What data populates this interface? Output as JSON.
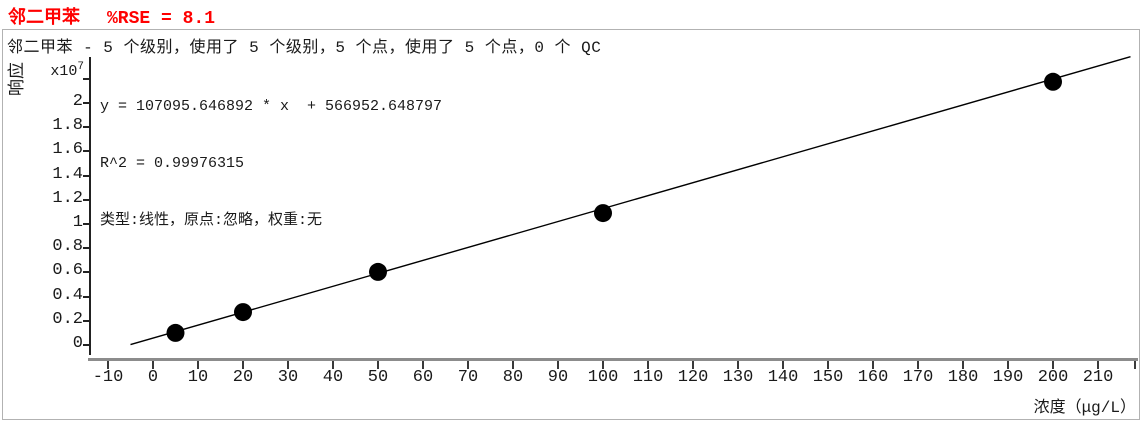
{
  "title": {
    "compound": "邻二甲苯",
    "rse": "%RSE = 8.1"
  },
  "plot": {
    "header": "邻二甲苯 - 5 个级别，使用了 5 个级别，5 个点，使用了 5 个点，0 个 QC",
    "equation_line": "y = 107095.646892 * x  + 566952.648797",
    "r2_line": "R^2 = 0.99976315",
    "model_line": "类型:线性，原点:忽略，权重:无",
    "y_axis_label": "响应",
    "y_scale_base": "x10",
    "y_scale_exp": "7",
    "x_axis_label": "浓度（μg/L）"
  },
  "chart_data": {
    "type": "scatter",
    "title": "邻二甲苯 %RSE = 8.1",
    "xlabel": "浓度（μg/L）",
    "ylabel": "响应 x10^7",
    "x": [
      5,
      20,
      50,
      100,
      200
    ],
    "y": [
      1000000,
      2720000,
      6040000,
      10900000,
      21750000
    ],
    "fit": {
      "kind": "线性",
      "origin_policy": "忽略",
      "weighting": "无",
      "slope": 107095.646892,
      "intercept": 566952.648797,
      "r_squared": 0.99976315,
      "rse_percent": 8.1,
      "levels": 5,
      "levels_used": 5,
      "points": 5,
      "points_used": 5,
      "qc_count": 0
    },
    "xticks": [
      -10,
      0,
      10,
      20,
      30,
      40,
      50,
      60,
      70,
      80,
      90,
      100,
      110,
      120,
      130,
      140,
      150,
      160,
      170,
      180,
      190,
      200,
      210
    ],
    "ytick_labels": [
      "0",
      "0.2",
      "0.4",
      "0.6",
      "0.8",
      "1",
      "1.2",
      "1.4",
      "1.6",
      "1.8",
      "2"
    ],
    "ytick_scale": 10000000,
    "xlim": [
      -14.5,
      219
    ],
    "ylim": [
      0,
      22200000
    ],
    "grid": false,
    "legend": false,
    "marker_color": "#000000",
    "line_color": "#000000",
    "title_color": "#ff0000"
  }
}
